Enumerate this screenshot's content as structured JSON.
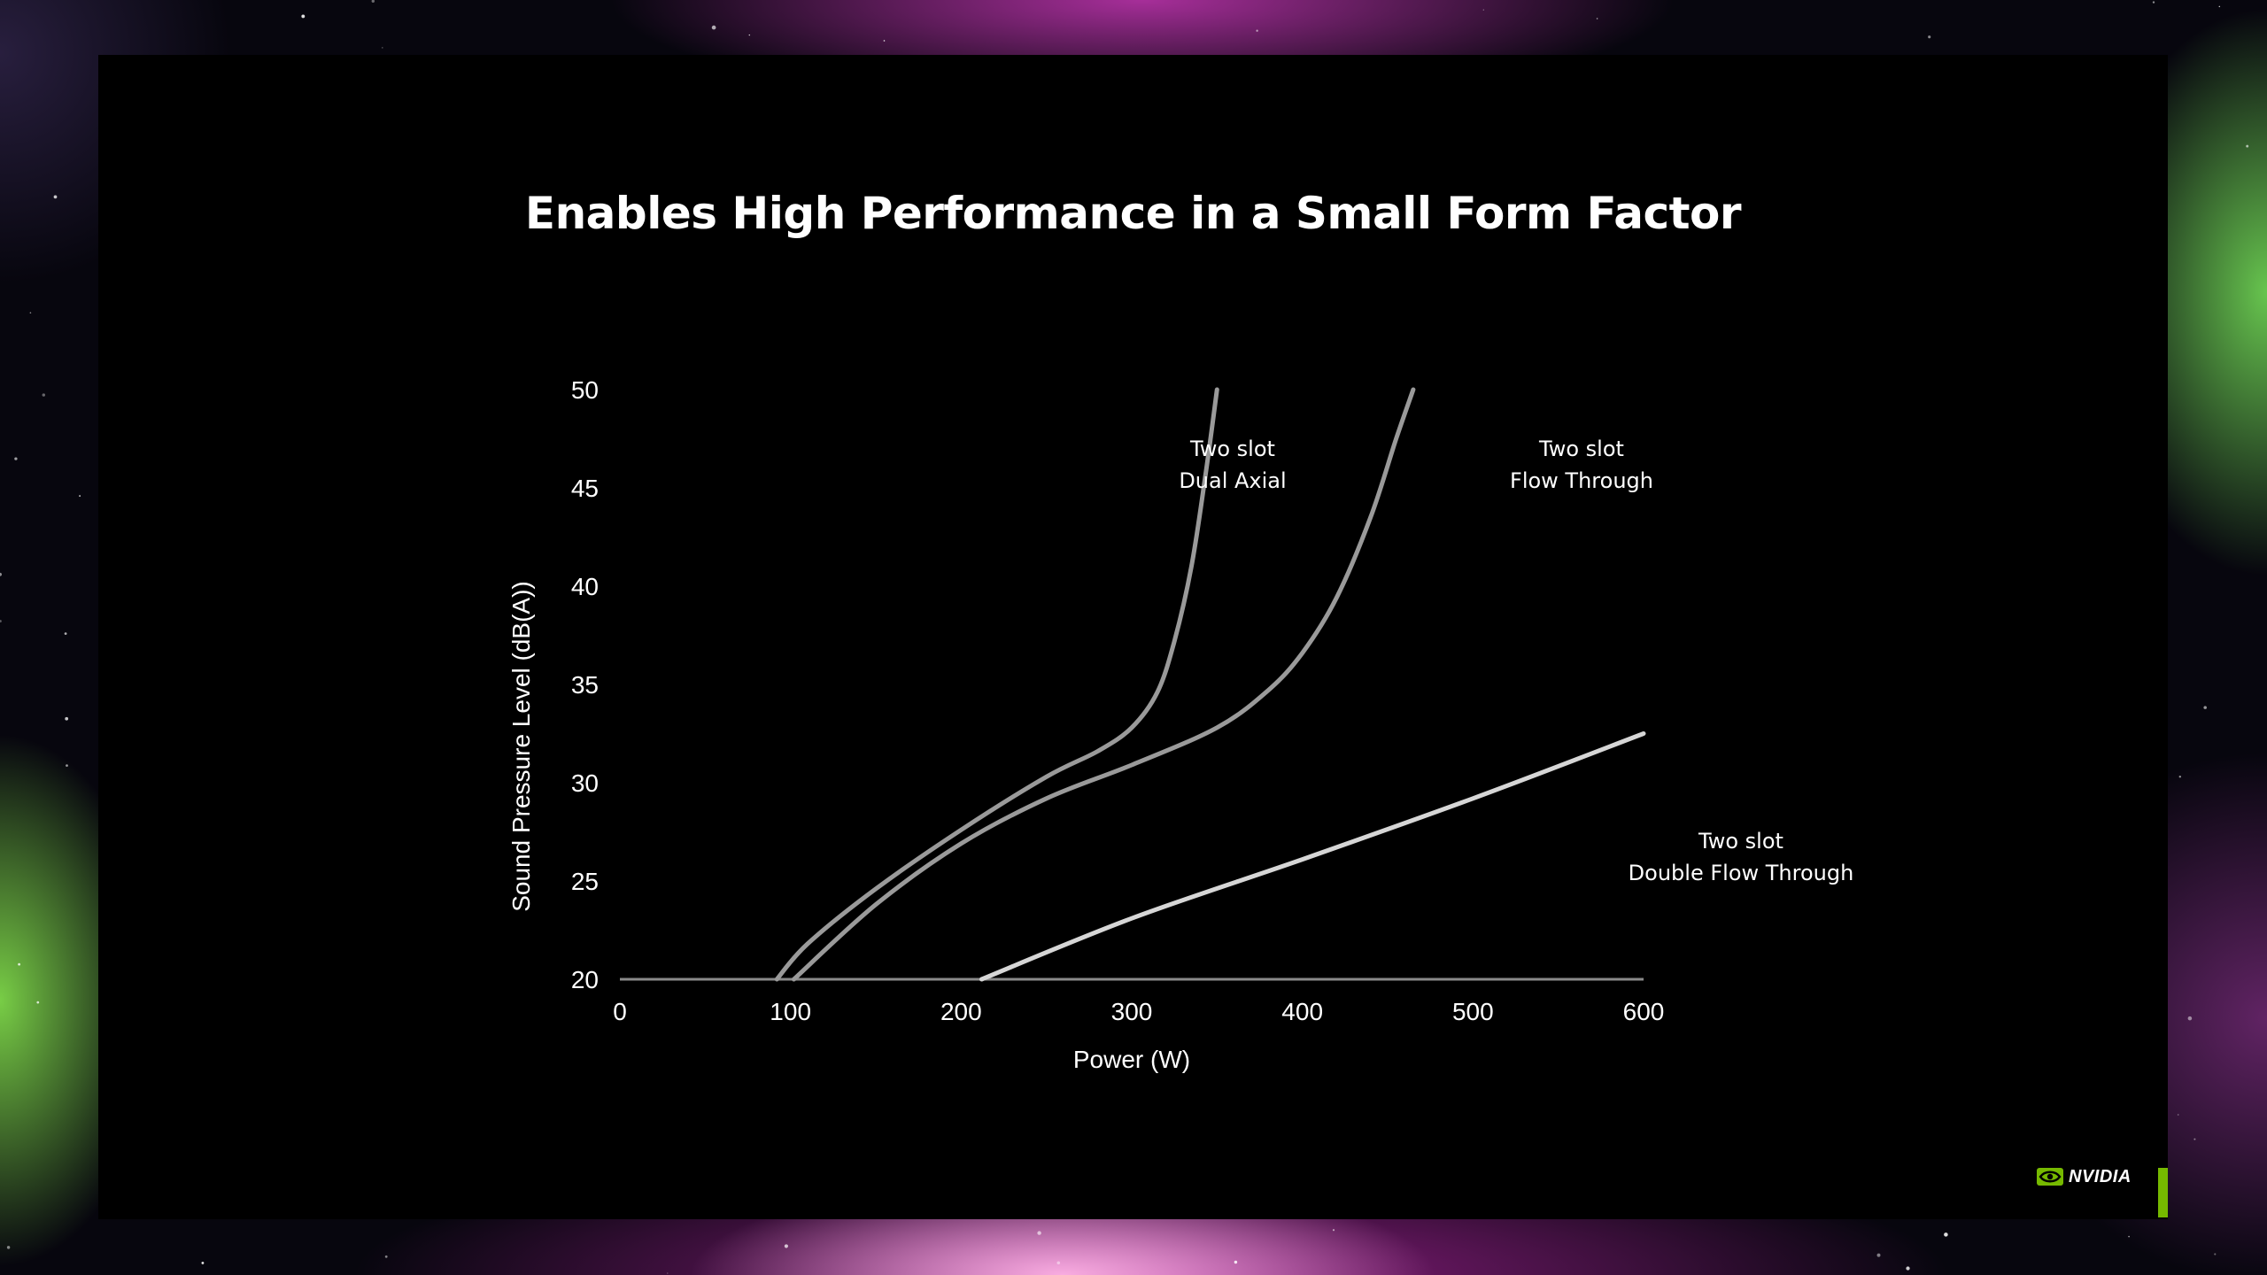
{
  "slide": {
    "title": "Enables High Performance in a Small Form Factor",
    "brand": "NVIDIA",
    "accent_color": "#76b900"
  },
  "chart_data": {
    "type": "line",
    "title": "",
    "xlabel": "Power (W)",
    "ylabel": "Sound Pressure Level (dB(A))",
    "xlim": [
      0,
      600
    ],
    "ylim": [
      20,
      50
    ],
    "xticks": [
      0,
      100,
      200,
      300,
      400,
      500,
      600
    ],
    "yticks": [
      20,
      25,
      30,
      35,
      40,
      45,
      50
    ],
    "grid": false,
    "legend": "none",
    "baseline": {
      "y": 20,
      "x": [
        0,
        600
      ],
      "color": "#8a8a8a"
    },
    "series": [
      {
        "name": "Two slot Dual Axial",
        "label_lines": [
          "Two slot",
          "Dual Axial"
        ],
        "color": "#9a9a9a",
        "points": [
          [
            92,
            20
          ],
          [
            110,
            21.8
          ],
          [
            150,
            24.6
          ],
          [
            200,
            27.6
          ],
          [
            250,
            30.3
          ],
          [
            280,
            31.6
          ],
          [
            300,
            32.8
          ],
          [
            315,
            34.6
          ],
          [
            325,
            37.2
          ],
          [
            335,
            41
          ],
          [
            343,
            45.5
          ],
          [
            350,
            50
          ]
        ]
      },
      {
        "name": "Two slot Flow Through",
        "label_lines": [
          "Two slot",
          "Flow Through"
        ],
        "color": "#9a9a9a",
        "points": [
          [
            102,
            20
          ],
          [
            150,
            23.8
          ],
          [
            200,
            26.9
          ],
          [
            250,
            29.2
          ],
          [
            300,
            30.9
          ],
          [
            350,
            32.8
          ],
          [
            380,
            34.7
          ],
          [
            400,
            36.6
          ],
          [
            420,
            39.4
          ],
          [
            440,
            43.5
          ],
          [
            455,
            47.5
          ],
          [
            465,
            50
          ]
        ]
      },
      {
        "name": "Two slot Double Flow Through",
        "label_lines": [
          "Two slot",
          "Double Flow Through"
        ],
        "color": "#d6d6d6",
        "points": [
          [
            212,
            20
          ],
          [
            300,
            23.1
          ],
          [
            400,
            26.1
          ],
          [
            500,
            29.2
          ],
          [
            600,
            32.5
          ]
        ]
      }
    ]
  },
  "colors": {
    "slide_background": "#000000",
    "text": "#ffffff"
  }
}
